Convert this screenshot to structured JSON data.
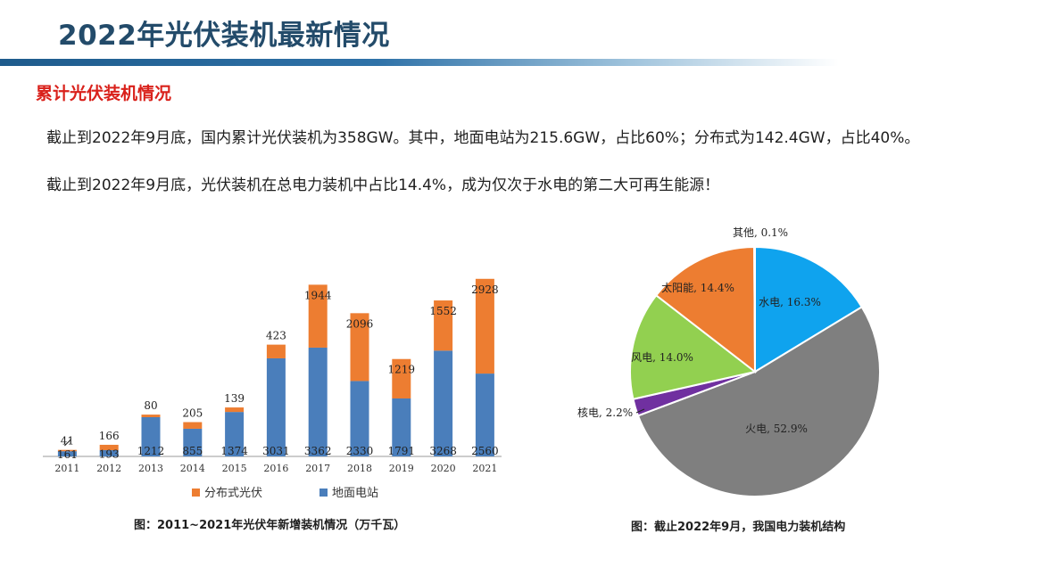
{
  "page": {
    "title": "2022年光伏装机最新情况",
    "subtitle": "累计光伏装机情况",
    "paragraphs": [
      "截止到2022年9月底，国内累计光伏装机为358GW。其中，地面电站为215.6GW，占比60%；分布式为142.4GW，占比40%。",
      "截止到2022年9月底，光伏装机在总电力装机中占比14.4%，成为仅次于水电的第二大可再生能源！"
    ],
    "colors": {
      "title": "#234b6a",
      "subtitle": "#d9211b"
    }
  },
  "chart_data": [
    {
      "type": "bar",
      "stacked": true,
      "title": "图：2011~2021年光伏年新增装机情况（万千瓦）",
      "categories": [
        "2011",
        "2012",
        "2013",
        "2014",
        "2015",
        "2016",
        "2017",
        "2018",
        "2019",
        "2020",
        "2021"
      ],
      "series": [
        {
          "name": "地面电站",
          "color": "#4a7ebb",
          "values": [
            161,
            193,
            1212,
            855,
            1374,
            3031,
            3362,
            2330,
            1791,
            3268,
            2560
          ]
        },
        {
          "name": "分布式光伏",
          "color": "#ed7d31",
          "values": [
            41,
            166,
            80,
            205,
            139,
            423,
            1944,
            2096,
            1219,
            1552,
            2928
          ]
        }
      ],
      "legend_order": [
        "分布式光伏",
        "地面电站"
      ],
      "legend_position": "bottom",
      "grid": false
    },
    {
      "type": "pie",
      "title": "图：截止2022年9月，我国电力装机结构",
      "slices": [
        {
          "label": "水电",
          "value": 16.3,
          "text": "水电, 16.3%",
          "color": "#0fa3ee"
        },
        {
          "label": "火电",
          "value": 52.9,
          "text": "火电, 52.9%",
          "color": "#7f7f7f"
        },
        {
          "label": "核电",
          "value": 2.2,
          "text": "核电, 2.2%",
          "color": "#7030a0"
        },
        {
          "label": "风电",
          "value": 14.0,
          "text": "风电, 14.0%",
          "color": "#92d050"
        },
        {
          "label": "太阳能",
          "value": 14.4,
          "text": "太阳能, 14.4%",
          "color": "#ed7d31"
        },
        {
          "label": "其他",
          "value": 0.1,
          "text": "其他, 0.1%",
          "color": "#bfbfbf"
        }
      ]
    }
  ]
}
